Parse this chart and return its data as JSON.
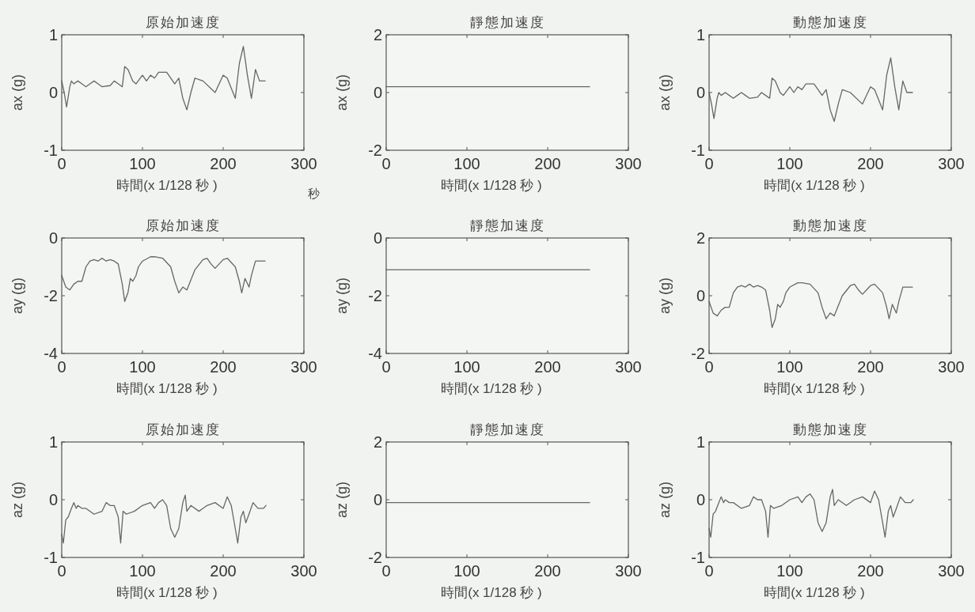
{
  "chart_data": [
    {
      "type": "line",
      "title": "原始加速度",
      "xlabel": "時間(x 1/128  秒 )",
      "ylabel": "ax (g)",
      "xlim": [
        0,
        300
      ],
      "xticks": [
        0,
        100,
        200,
        300
      ],
      "ylim": [
        -1,
        1
      ],
      "yticks": [
        -1,
        0,
        1
      ],
      "color": "#666666",
      "annotations": [
        "秒"
      ],
      "x": [
        0,
        3,
        6,
        10,
        12,
        15,
        20,
        25,
        30,
        35,
        40,
        45,
        50,
        60,
        65,
        70,
        75,
        78,
        82,
        88,
        92,
        100,
        105,
        110,
        115,
        120,
        130,
        140,
        145,
        150,
        155,
        160,
        165,
        175,
        190,
        200,
        205,
        215,
        220,
        225,
        230,
        235,
        240,
        245,
        252
      ],
      "values": [
        0.2,
        0,
        -0.25,
        0.1,
        0.2,
        0.15,
        0.2,
        0.15,
        0.1,
        0.15,
        0.2,
        0.15,
        0.1,
        0.12,
        0.2,
        0.15,
        0.1,
        0.45,
        0.4,
        0.2,
        0.15,
        0.3,
        0.2,
        0.3,
        0.25,
        0.35,
        0.35,
        0.15,
        0.25,
        -0.1,
        -0.3,
        0,
        0.25,
        0.2,
        0,
        0.3,
        0.25,
        -0.1,
        0.5,
        0.8,
        0.3,
        -0.1,
        0.4,
        0.2,
        0.2
      ]
    },
    {
      "type": "line",
      "title": "靜態加速度",
      "xlabel": "時間(x 1/128  秒 )",
      "ylabel": "ax (g)",
      "xlim": [
        0,
        300
      ],
      "xticks": [
        0,
        100,
        200,
        300
      ],
      "ylim": [
        -2,
        2
      ],
      "yticks": [
        -2,
        0,
        2
      ],
      "color": "#666666",
      "x": [
        0,
        252
      ],
      "values": [
        0.2,
        0.2
      ]
    },
    {
      "type": "line",
      "title": "動態加速度",
      "xlabel": "時間(x 1/128  秒 )",
      "ylabel": "ax (g)",
      "xlim": [
        0,
        300
      ],
      "xticks": [
        0,
        100,
        200,
        300
      ],
      "ylim": [
        -1,
        1
      ],
      "yticks": [
        -1,
        0,
        1
      ],
      "color": "#666666",
      "x": [
        0,
        3,
        6,
        10,
        12,
        15,
        20,
        25,
        30,
        35,
        40,
        45,
        50,
        60,
        65,
        70,
        75,
        78,
        82,
        88,
        92,
        100,
        105,
        110,
        115,
        120,
        130,
        140,
        145,
        150,
        155,
        160,
        165,
        175,
        190,
        200,
        205,
        215,
        220,
        225,
        230,
        235,
        240,
        245,
        252
      ],
      "values": [
        0,
        -0.2,
        -0.45,
        -0.1,
        0,
        -0.05,
        0,
        -0.05,
        -0.1,
        -0.05,
        0,
        -0.05,
        -0.1,
        -0.08,
        0,
        -0.05,
        -0.1,
        0.25,
        0.2,
        0,
        -0.05,
        0.1,
        0,
        0.1,
        0.05,
        0.15,
        0.15,
        -0.05,
        0.05,
        -0.3,
        -0.5,
        -0.2,
        0.05,
        0,
        -0.2,
        0.1,
        0.05,
        -0.3,
        0.3,
        0.6,
        0.1,
        -0.3,
        0.2,
        0,
        0
      ]
    },
    {
      "type": "line",
      "title": "原始加速度",
      "xlabel": "時間(x 1/128  秒 )",
      "ylabel": "ay (g)",
      "xlim": [
        0,
        300
      ],
      "xticks": [
        0,
        100,
        200,
        300
      ],
      "ylim": [
        -4,
        0
      ],
      "yticks": [
        -4,
        -2,
        0
      ],
      "color": "#666666",
      "x": [
        0,
        5,
        10,
        15,
        20,
        25,
        30,
        35,
        40,
        45,
        50,
        55,
        60,
        65,
        70,
        75,
        78,
        82,
        85,
        88,
        92,
        95,
        100,
        110,
        115,
        125,
        135,
        140,
        145,
        150,
        155,
        165,
        175,
        180,
        185,
        190,
        195,
        200,
        205,
        215,
        220,
        223,
        227,
        232,
        235,
        240,
        245,
        252
      ],
      "values": [
        -1.3,
        -1.7,
        -1.8,
        -1.6,
        -1.5,
        -1.5,
        -1.0,
        -0.8,
        -0.75,
        -0.8,
        -0.7,
        -0.8,
        -0.75,
        -0.8,
        -0.9,
        -1.6,
        -2.2,
        -1.9,
        -1.4,
        -1.5,
        -1.3,
        -1.0,
        -0.8,
        -0.65,
        -0.65,
        -0.7,
        -1.0,
        -1.5,
        -1.9,
        -1.7,
        -1.8,
        -1.1,
        -0.75,
        -0.7,
        -0.9,
        -1.05,
        -0.9,
        -0.75,
        -0.7,
        -1.0,
        -1.5,
        -1.9,
        -1.4,
        -1.7,
        -1.3,
        -0.8,
        -0.8,
        -0.8
      ]
    },
    {
      "type": "line",
      "title": "靜態加速度",
      "xlabel": "時間(x 1/128  秒 )",
      "ylabel": "ay (g)",
      "xlim": [
        0,
        300
      ],
      "xticks": [
        0,
        100,
        200,
        300
      ],
      "ylim": [
        -4,
        0
      ],
      "yticks": [
        -4,
        -2,
        0
      ],
      "color": "#666666",
      "x": [
        0,
        252
      ],
      "values": [
        -1.1,
        -1.1
      ]
    },
    {
      "type": "line",
      "title": "動態加速度",
      "xlabel": "時間(x 1/128  秒 )",
      "ylabel": "ay (g)",
      "xlim": [
        0,
        300
      ],
      "xticks": [
        0,
        100,
        200,
        300
      ],
      "ylim": [
        -2,
        2
      ],
      "yticks": [
        -2,
        0,
        2
      ],
      "color": "#666666",
      "x": [
        0,
        5,
        10,
        15,
        20,
        25,
        30,
        35,
        40,
        45,
        50,
        55,
        60,
        65,
        70,
        75,
        78,
        82,
        85,
        88,
        92,
        95,
        100,
        110,
        115,
        125,
        135,
        140,
        145,
        150,
        155,
        165,
        175,
        180,
        185,
        190,
        195,
        200,
        205,
        215,
        220,
        223,
        227,
        232,
        235,
        240,
        245,
        252
      ],
      "values": [
        -0.2,
        -0.6,
        -0.7,
        -0.5,
        -0.4,
        -0.4,
        0.1,
        0.3,
        0.35,
        0.3,
        0.4,
        0.3,
        0.35,
        0.3,
        0.2,
        -0.5,
        -1.1,
        -0.8,
        -0.3,
        -0.4,
        -0.2,
        0.1,
        0.3,
        0.45,
        0.45,
        0.4,
        0.1,
        -0.4,
        -0.8,
        -0.6,
        -0.7,
        0,
        0.35,
        0.4,
        0.2,
        0.05,
        0.2,
        0.35,
        0.4,
        0.1,
        -0.4,
        -0.8,
        -0.3,
        -0.6,
        -0.2,
        0.3,
        0.3,
        0.3
      ]
    },
    {
      "type": "line",
      "title": "原始加速度",
      "xlabel": "時間(x 1/128  秒 )",
      "ylabel": "az (g)",
      "xlim": [
        0,
        300
      ],
      "xticks": [
        0,
        100,
        200,
        300
      ],
      "ylim": [
        -1,
        1
      ],
      "yticks": [
        -1,
        0,
        1
      ],
      "color": "#666666",
      "x": [
        0,
        2,
        5,
        8,
        12,
        15,
        18,
        20,
        25,
        30,
        40,
        50,
        55,
        60,
        65,
        70,
        73,
        76,
        80,
        90,
        100,
        110,
        115,
        120,
        125,
        130,
        135,
        140,
        145,
        150,
        153,
        155,
        160,
        170,
        180,
        190,
        200,
        205,
        210,
        215,
        218,
        222,
        225,
        228,
        232,
        237,
        243,
        250,
        253
      ],
      "values": [
        -0.6,
        -0.75,
        -0.35,
        -0.3,
        -0.15,
        -0.05,
        -0.15,
        -0.1,
        -0.15,
        -0.15,
        -0.25,
        -0.2,
        -0.05,
        -0.1,
        -0.1,
        -0.3,
        -0.75,
        -0.2,
        -0.25,
        -0.2,
        -0.1,
        -0.05,
        -0.15,
        -0.05,
        0,
        -0.1,
        -0.5,
        -0.65,
        -0.5,
        -0.05,
        0.08,
        -0.2,
        -0.1,
        -0.2,
        -0.1,
        -0.05,
        -0.15,
        0.05,
        -0.1,
        -0.5,
        -0.75,
        -0.3,
        -0.2,
        -0.4,
        -0.25,
        -0.05,
        -0.15,
        -0.15,
        -0.1
      ]
    },
    {
      "type": "line",
      "title": "靜態加速度",
      "xlabel": "時間(x 1/128  秒 )",
      "ylabel": "az (g)",
      "xlim": [
        0,
        300
      ],
      "xticks": [
        0,
        100,
        200,
        300
      ],
      "ylim": [
        -2,
        2
      ],
      "yticks": [
        -2,
        0,
        2
      ],
      "color": "#666666",
      "x": [
        0,
        252
      ],
      "values": [
        -0.1,
        -0.1
      ]
    },
    {
      "type": "line",
      "title": "動態加速度",
      "xlabel": "時間(x 1/128  秒 )",
      "ylabel": "az (g)",
      "xlim": [
        0,
        300
      ],
      "xticks": [
        0,
        100,
        200,
        300
      ],
      "ylim": [
        -1,
        1
      ],
      "yticks": [
        -1,
        0,
        1
      ],
      "color": "#666666",
      "x": [
        0,
        2,
        5,
        8,
        12,
        15,
        18,
        20,
        25,
        30,
        40,
        50,
        55,
        60,
        65,
        70,
        73,
        76,
        80,
        90,
        100,
        110,
        115,
        120,
        125,
        130,
        135,
        140,
        145,
        150,
        153,
        155,
        160,
        170,
        180,
        190,
        200,
        205,
        210,
        215,
        218,
        222,
        225,
        228,
        232,
        237,
        243,
        250,
        253
      ],
      "values": [
        -0.5,
        -0.65,
        -0.25,
        -0.2,
        -0.05,
        0.05,
        -0.05,
        0,
        -0.05,
        -0.05,
        -0.15,
        -0.1,
        0.05,
        0,
        0,
        -0.2,
        -0.65,
        -0.1,
        -0.15,
        -0.1,
        0,
        0.05,
        -0.05,
        0.05,
        0.1,
        0,
        -0.4,
        -0.55,
        -0.4,
        0.05,
        0.18,
        -0.1,
        0,
        -0.1,
        0,
        0.05,
        -0.05,
        0.15,
        0,
        -0.4,
        -0.65,
        -0.2,
        -0.1,
        -0.3,
        -0.15,
        0.05,
        -0.05,
        -0.05,
        0
      ]
    }
  ]
}
